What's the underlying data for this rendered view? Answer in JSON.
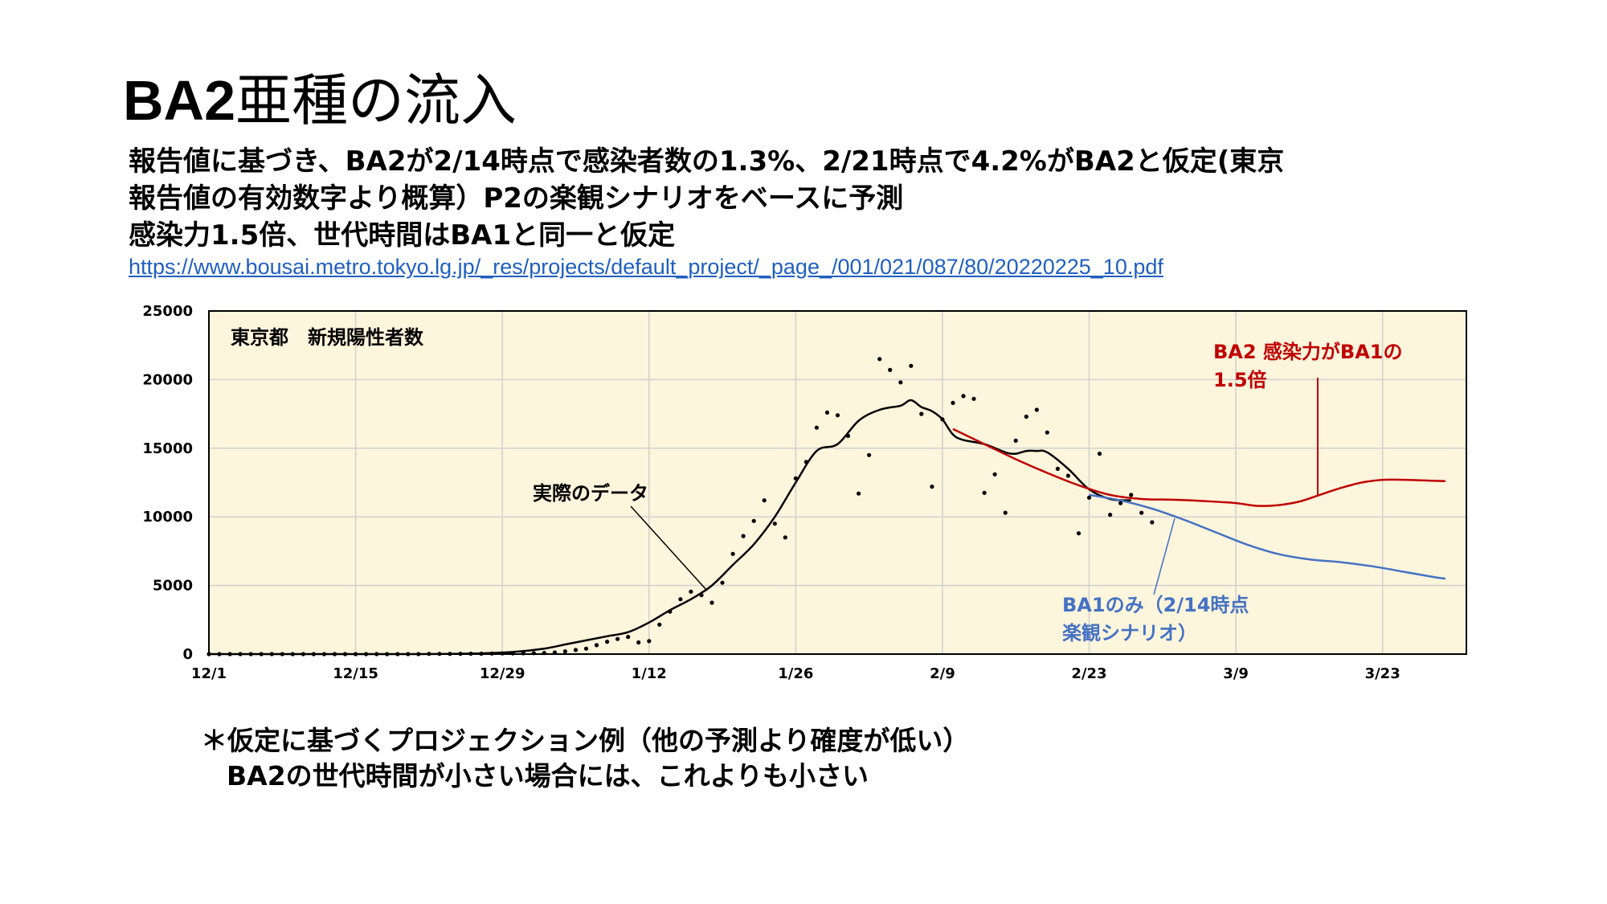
{
  "slide": {
    "title_latin": "BA2",
    "title_rest": "亜種の流入",
    "description": [
      "報告値に基づき、BA2が2/14時点で感染者数の1.3%、2/21時点で4.2%がBA2と仮定(東京",
      "報告値の有効数字より概算）P2の楽観シナリオをベースに予測",
      "感染力1.5倍、世代時間はBA1と同一と仮定"
    ],
    "source_url": "https://www.bousai.metro.tokyo.lg.jp/_res/projects/default_project/_page_/001/021/087/80/20220225_10.pdf",
    "notes": [
      "＊仮定に基づくプロジェクション例（他の予測より確度が低い）",
      "BA2の世代時間が小さい場合には、これよりも小さい"
    ]
  },
  "chart_data": {
    "type": "line",
    "title": "東京都　新規陽性者数",
    "x_tick_labels": [
      "12/1",
      "12/15",
      "12/29",
      "1/12",
      "1/26",
      "2/9",
      "2/23",
      "3/9",
      "3/23"
    ],
    "x_tick_days": [
      0,
      14,
      28,
      42,
      56,
      70,
      84,
      98,
      112
    ],
    "x_range_days": [
      0,
      120
    ],
    "ylim": [
      0,
      25000
    ],
    "y_ticks": [
      0,
      5000,
      10000,
      15000,
      20000,
      25000
    ],
    "grid": true,
    "plot_background": "#fdf5dc",
    "annotations": {
      "actual": "実際のデータ",
      "ba2_line1": "BA2 感染力がBA1の",
      "ba2_line2": "1.5倍",
      "ba1_line1": "BA1のみ（2/14時点",
      "ba1_line2": "楽観シナリオ）"
    },
    "colors": {
      "actual": "#000000",
      "ba2": "#c00000",
      "ba1": "#4472c4",
      "points": "#000000"
    },
    "points": [
      [
        0,
        0
      ],
      [
        1,
        0
      ],
      [
        2,
        0
      ],
      [
        3,
        0
      ],
      [
        4,
        0
      ],
      [
        5,
        0
      ],
      [
        6,
        0
      ],
      [
        7,
        0
      ],
      [
        8,
        0
      ],
      [
        9,
        0
      ],
      [
        10,
        0
      ],
      [
        11,
        0
      ],
      [
        12,
        0
      ],
      [
        13,
        0
      ],
      [
        14,
        0
      ],
      [
        15,
        0
      ],
      [
        16,
        0
      ],
      [
        17,
        0
      ],
      [
        18,
        0
      ],
      [
        19,
        0
      ],
      [
        20,
        0
      ],
      [
        21,
        15
      ],
      [
        22,
        18
      ],
      [
        23,
        20
      ],
      [
        24,
        25
      ],
      [
        25,
        28
      ],
      [
        26,
        30
      ],
      [
        27,
        40
      ],
      [
        28,
        45
      ],
      [
        29,
        50
      ],
      [
        30,
        60
      ],
      [
        31,
        70
      ],
      [
        32,
        80
      ],
      [
        33,
        120
      ],
      [
        34,
        200
      ],
      [
        35,
        300
      ],
      [
        36,
        400
      ],
      [
        37,
        650
      ],
      [
        38,
        900
      ],
      [
        39,
        1100
      ],
      [
        40,
        1250
      ],
      [
        41,
        850
      ],
      [
        42,
        950
      ],
      [
        43,
        2150
      ],
      [
        44,
        3100
      ],
      [
        45,
        4000
      ],
      [
        46,
        4550
      ],
      [
        47,
        4300
      ],
      [
        48,
        3750
      ],
      [
        49,
        5200
      ],
      [
        50,
        7300
      ],
      [
        51,
        8600
      ],
      [
        52,
        9700
      ],
      [
        53,
        11200
      ],
      [
        54,
        9500
      ],
      [
        55,
        8500
      ],
      [
        56,
        12800
      ],
      [
        57,
        14000
      ],
      [
        58,
        16500
      ],
      [
        59,
        17600
      ],
      [
        60,
        17400
      ],
      [
        61,
        15900
      ],
      [
        62,
        11700
      ],
      [
        63,
        14500
      ],
      [
        64,
        21500
      ],
      [
        65,
        20700
      ],
      [
        66,
        19800
      ],
      [
        67,
        21000
      ],
      [
        68,
        17500
      ],
      [
        69,
        12200
      ],
      [
        70,
        17100
      ],
      [
        71,
        18300
      ],
      [
        72,
        18800
      ],
      [
        73,
        18600
      ],
      [
        74,
        11750
      ],
      [
        75,
        13100
      ],
      [
        76,
        10300
      ],
      [
        77,
        15550
      ],
      [
        78,
        17300
      ],
      [
        79,
        17800
      ],
      [
        80,
        16150
      ],
      [
        81,
        13500
      ],
      [
        82,
        13000
      ],
      [
        83,
        8800
      ],
      [
        84,
        11400
      ],
      [
        85,
        14600
      ],
      [
        86,
        10150
      ],
      [
        87,
        11000
      ],
      [
        88,
        11600
      ],
      [
        89,
        10300
      ],
      [
        90,
        9600
      ]
    ],
    "series": [
      {
        "key": "actual",
        "x": [
          0,
          20,
          26,
          29,
          32,
          34,
          36,
          38,
          40,
          42,
          44,
          46,
          48,
          50,
          52,
          54,
          56,
          58,
          60,
          62,
          64,
          66,
          67,
          68,
          69,
          70,
          71,
          72,
          74,
          76,
          77,
          78,
          79,
          80,
          82,
          84,
          86,
          88
        ],
        "values": [
          0,
          0,
          50,
          150,
          400,
          700,
          1000,
          1300,
          1600,
          2300,
          3200,
          4000,
          5000,
          6500,
          8000,
          10000,
          12500,
          14800,
          15300,
          17000,
          17800,
          18100,
          18500,
          18000,
          17700,
          17100,
          16000,
          15600,
          15300,
          14700,
          14600,
          14800,
          14800,
          14700,
          13500,
          12000,
          11300,
          11200
        ]
      },
      {
        "key": "ba2",
        "x": [
          71,
          74,
          77,
          80,
          83,
          86,
          89,
          92,
          95,
          98,
          100,
          102,
          104,
          106,
          108,
          110,
          112,
          114,
          116,
          118
        ],
        "values": [
          16400,
          15300,
          14200,
          13200,
          12300,
          11600,
          11300,
          11250,
          11150,
          11000,
          10800,
          10850,
          11100,
          11600,
          12100,
          12500,
          12700,
          12700,
          12650,
          12600
        ]
      },
      {
        "key": "ba1",
        "x": [
          84,
          87,
          90,
          93,
          96,
          99,
          102,
          105,
          108,
          111,
          114,
          117,
          118
        ],
        "values": [
          11600,
          11200,
          10600,
          9800,
          8900,
          8000,
          7300,
          6900,
          6700,
          6400,
          6000,
          5600,
          5500
        ]
      }
    ]
  }
}
